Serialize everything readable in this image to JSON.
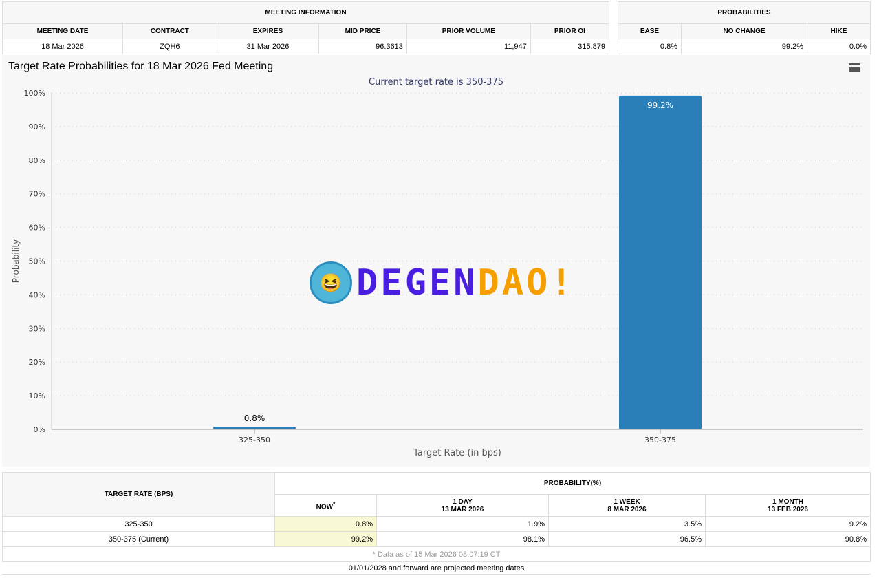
{
  "meeting_info": {
    "title": "MEETING INFORMATION",
    "headers": [
      "MEETING DATE",
      "CONTRACT",
      "EXPIRES",
      "MID PRICE",
      "PRIOR VOLUME",
      "PRIOR OI"
    ],
    "values": [
      "18 Mar 2026",
      "ZQH6",
      "31 Mar 2026",
      "96.3613",
      "11,947",
      "315,879"
    ]
  },
  "probabilities": {
    "title": "PROBABILITIES",
    "headers": [
      "EASE",
      "NO CHANGE",
      "HIKE"
    ],
    "values": [
      "0.8%",
      "99.2%",
      "0.0%"
    ]
  },
  "chart_data": {
    "type": "bar",
    "title": "Target Rate Probabilities for 18 Mar 2026 Fed Meeting",
    "subtitle": "Current target rate is 350-375",
    "xlabel": "Target Rate (in bps)",
    "ylabel": "Probability",
    "categories": [
      "325-350",
      "350-375"
    ],
    "values": [
      0.8,
      99.2
    ],
    "data_labels": [
      "0.8%",
      "99.2%"
    ],
    "ylim": [
      0,
      100
    ],
    "yticks": [
      "0%",
      "10%",
      "20%",
      "30%",
      "40%",
      "50%",
      "60%",
      "70%",
      "80%",
      "90%",
      "100%"
    ],
    "grid": true,
    "color": "#2a7fb8"
  },
  "table": {
    "col_header": "TARGET RATE (BPS)",
    "group_header": "PROBABILITY(%)",
    "cols": [
      {
        "label": "NOW",
        "note": "*",
        "date": ""
      },
      {
        "label": "1 DAY",
        "date": "13 MAR 2026"
      },
      {
        "label": "1 WEEK",
        "date": "8 MAR 2026"
      },
      {
        "label": "1 MONTH",
        "date": "13 FEB 2026"
      }
    ],
    "rows": [
      {
        "rate": "325-350",
        "vals": [
          "0.8%",
          "1.9%",
          "3.5%",
          "9.2%"
        ]
      },
      {
        "rate": "350-375 (Current)",
        "vals": [
          "99.2%",
          "98.1%",
          "96.5%",
          "90.8%"
        ]
      }
    ],
    "note": "* Data as of 15 Mar 2026 08:07:19 CT"
  },
  "footer": "01/01/2028 and forward are projected meeting dates",
  "watermark": {
    "left": "DEGEN",
    "right": "DAO!",
    "left_color": "#4a1ee0",
    "right_color": "#f5a000"
  }
}
